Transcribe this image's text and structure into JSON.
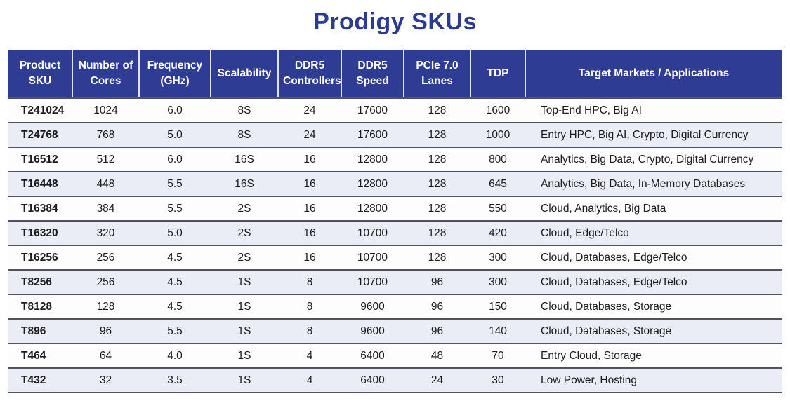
{
  "chart_data": {
    "type": "table",
    "title": "Prodigy SKUs",
    "columns": [
      "Product SKU",
      "Number of Cores",
      "Frequency (GHz)",
      "Scalability",
      "DDR5 Controllers",
      "DDR5 Speed",
      "PCIe 7.0 Lanes",
      "TDP",
      "Target Markets / Applications"
    ],
    "rows": [
      [
        "T241024",
        "1024",
        "6.0",
        "8S",
        "24",
        "17600",
        "128",
        "1600",
        "Top-End HPC, Big AI"
      ],
      [
        "T24768",
        "768",
        "5.0",
        "8S",
        "24",
        "17600",
        "128",
        "1000",
        "Entry HPC, Big AI, Crypto, Digital Currency"
      ],
      [
        "T16512",
        "512",
        "6.0",
        "16S",
        "16",
        "12800",
        "128",
        "800",
        "Analytics, Big Data, Crypto, Digital Currency"
      ],
      [
        "T16448",
        "448",
        "5.5",
        "16S",
        "16",
        "12800",
        "128",
        "645",
        "Analytics, Big Data, In-Memory Databases"
      ],
      [
        "T16384",
        "384",
        "5.5",
        "2S",
        "16",
        "12800",
        "128",
        "550",
        "Cloud, Analytics, Big Data"
      ],
      [
        "T16320",
        "320",
        "5.0",
        "2S",
        "16",
        "10700",
        "128",
        "420",
        "Cloud, Edge/Telco"
      ],
      [
        "T16256",
        "256",
        "4.5",
        "2S",
        "16",
        "10700",
        "128",
        "300",
        "Cloud, Databases, Edge/Telco"
      ],
      [
        "T8256",
        "256",
        "4.5",
        "1S",
        "8",
        "10700",
        "96",
        "300",
        "Cloud, Databases, Edge/Telco"
      ],
      [
        "T8128",
        "128",
        "4.5",
        "1S",
        "8",
        "9600",
        "96",
        "150",
        "Cloud, Databases, Storage"
      ],
      [
        "T896",
        "96",
        "5.5",
        "1S",
        "8",
        "9600",
        "96",
        "140",
        "Cloud, Databases, Storage"
      ],
      [
        "T464",
        "64",
        "4.0",
        "1S",
        "4",
        "6400",
        "48",
        "70",
        "Entry Cloud, Storage"
      ],
      [
        "T432",
        "32",
        "3.5",
        "1S",
        "4",
        "6400",
        "24",
        "30",
        "Low Power, Hosting"
      ]
    ]
  },
  "colors": {
    "title_text": "#2b3a94",
    "header_bg": "#2e3c94",
    "header_text": "#ffffff",
    "header_divider": "#dde1f0",
    "row_odd_bg": "#fdfdfd",
    "row_even_bg": "#eaecf6",
    "row_divider": "#52525e",
    "body_text": "#1c1c1e"
  }
}
